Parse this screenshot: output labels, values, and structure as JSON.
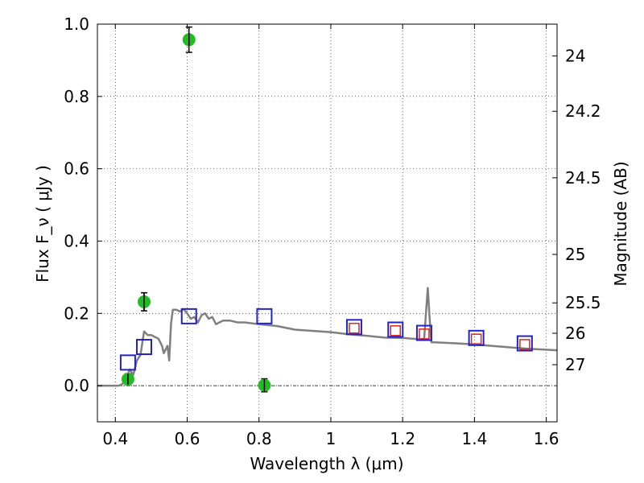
{
  "chart_data": {
    "type": "scatter",
    "xlabel": "Wavelength  λ (μm)",
    "ylabel": "Flux  F_ν  ( μJy )",
    "ylabel_right": "Magnitude (AB)",
    "xlim": [
      0.35,
      1.63
    ],
    "ylim": [
      -0.1,
      1.0
    ],
    "grid": true,
    "x_ticks": [
      0.4,
      0.6,
      0.8,
      1.0,
      1.2,
      1.4,
      1.6
    ],
    "x_tick_labels": [
      "0.4",
      "0.6",
      "0.8",
      "1",
      "1.2",
      "1.4",
      "1.6"
    ],
    "y_ticks": [
      0.0,
      0.2,
      0.4,
      0.6,
      0.8,
      1.0
    ],
    "y_tick_labels": [
      "0.0",
      "0.2",
      "0.4",
      "0.6",
      "0.8",
      "1.0"
    ],
    "right_ticks": [
      {
        "label": "24",
        "flux": 0.912
      },
      {
        "label": "24.2",
        "flux": 0.759
      },
      {
        "label": "24.5",
        "flux": 0.575
      },
      {
        "label": "25",
        "flux": 0.363
      },
      {
        "label": "25.5",
        "flux": 0.229
      },
      {
        "label": "26",
        "flux": 0.145
      },
      {
        "label": "27",
        "flux": 0.058
      }
    ],
    "series": [
      {
        "name": "Observed photometry",
        "marker": "circle",
        "color": "#22bb22",
        "x": [
          0.435,
          0.48,
          0.605,
          0.815
        ],
        "y": [
          0.018,
          0.232,
          0.957,
          0.001
        ],
        "yerr": [
          0.015,
          0.025,
          0.035,
          0.018
        ]
      },
      {
        "name": "Model photometry",
        "marker": "square",
        "color": "#2222cc",
        "x": [
          0.435,
          0.48,
          0.605,
          0.815,
          1.065,
          1.18,
          1.26,
          1.405,
          1.54
        ],
        "y": [
          0.064,
          0.107,
          0.192,
          0.192,
          0.162,
          0.155,
          0.146,
          0.132,
          0.117
        ]
      },
      {
        "name": "Model photometry (NIR)",
        "marker": "square-small",
        "color": "#dd2222",
        "x": [
          1.065,
          1.18,
          1.26,
          1.405,
          1.54
        ],
        "y": [
          0.159,
          0.152,
          0.143,
          0.129,
          0.114
        ]
      },
      {
        "name": "Best-fit SED template",
        "marker": "line",
        "color": "#808080",
        "x": [
          0.35,
          0.41,
          0.42,
          0.43,
          0.44,
          0.45,
          0.46,
          0.47,
          0.48,
          0.49,
          0.5,
          0.51,
          0.52,
          0.53,
          0.535,
          0.545,
          0.55,
          0.555,
          0.56,
          0.57,
          0.58,
          0.59,
          0.6,
          0.61,
          0.62,
          0.63,
          0.64,
          0.65,
          0.66,
          0.67,
          0.68,
          0.69,
          0.7,
          0.72,
          0.74,
          0.76,
          0.8,
          0.85,
          0.9,
          1.0,
          1.05,
          1.1,
          1.15,
          1.2,
          1.25,
          1.26,
          1.27,
          1.275,
          1.28,
          1.29,
          1.35,
          1.4,
          1.45,
          1.5,
          1.55,
          1.63
        ],
        "y": [
          0.0,
          0.0,
          0.005,
          0.02,
          0.045,
          0.03,
          0.07,
          0.085,
          0.15,
          0.14,
          0.14,
          0.135,
          0.13,
          0.11,
          0.09,
          0.11,
          0.07,
          0.17,
          0.21,
          0.21,
          0.205,
          0.212,
          0.2,
          0.185,
          0.19,
          0.175,
          0.195,
          0.2,
          0.185,
          0.19,
          0.17,
          0.175,
          0.18,
          0.18,
          0.175,
          0.175,
          0.17,
          0.165,
          0.155,
          0.148,
          0.142,
          0.138,
          0.133,
          0.132,
          0.128,
          0.13,
          0.27,
          0.19,
          0.12,
          0.12,
          0.117,
          0.114,
          0.11,
          0.106,
          0.102,
          0.098
        ]
      }
    ]
  }
}
